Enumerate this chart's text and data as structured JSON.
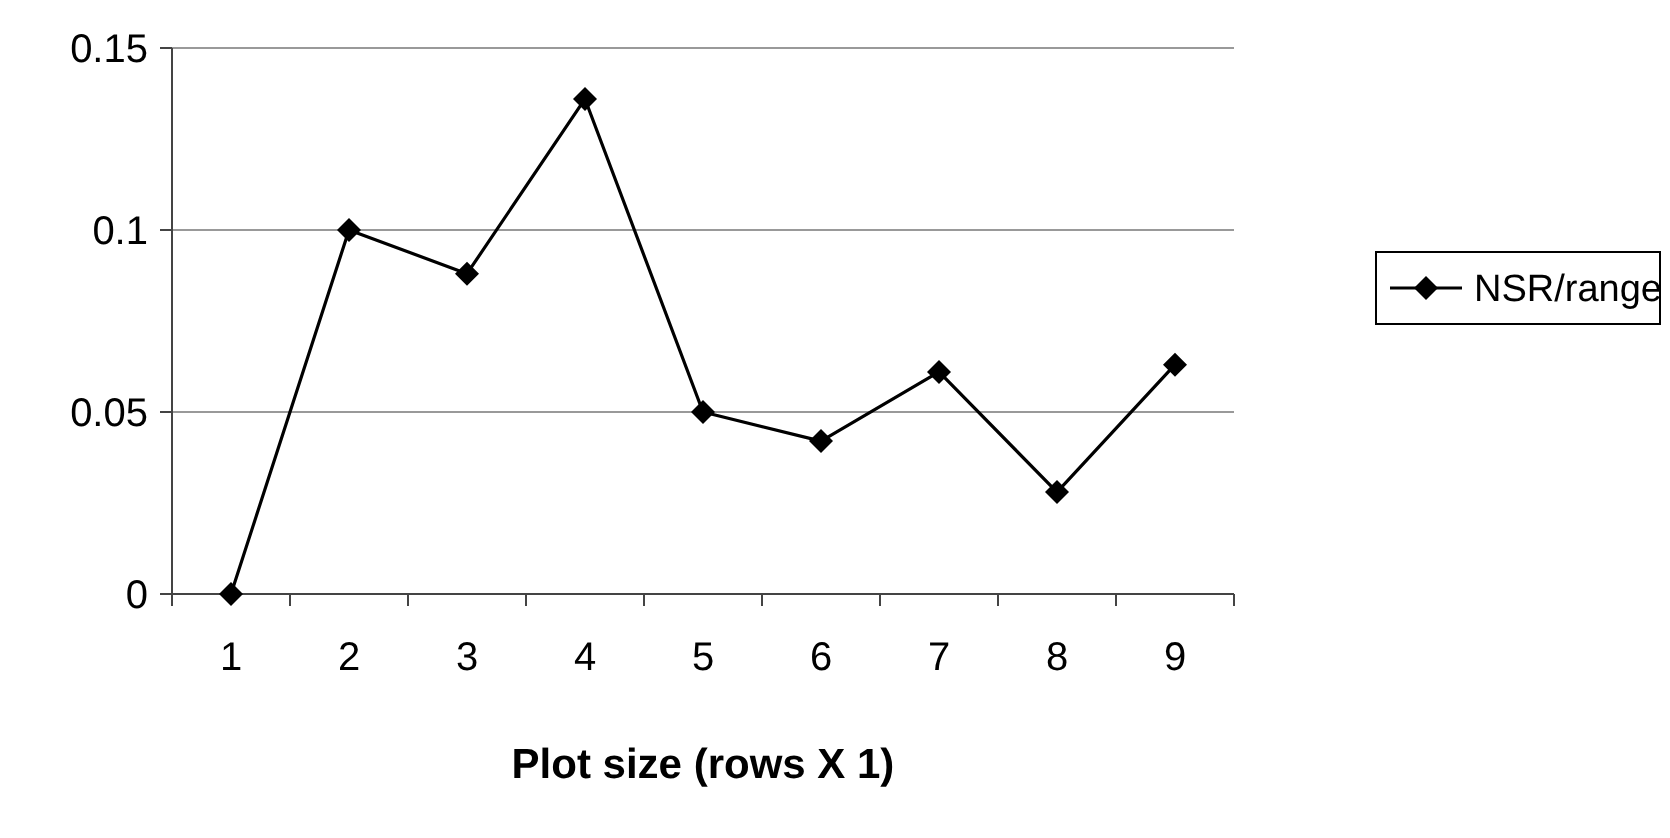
{
  "chart_data": {
    "type": "line",
    "xlabel": "Plot size (rows X 1)",
    "categories": [
      "1",
      "2",
      "3",
      "4",
      "5",
      "6",
      "7",
      "8",
      "9"
    ],
    "series": [
      {
        "name": "NSR/range",
        "color": "#000000",
        "values": [
          0,
          0.1,
          0.088,
          0.136,
          0.05,
          0.042,
          0.061,
          0.028,
          0.063
        ]
      }
    ],
    "ylim": [
      0,
      0.15
    ],
    "yticks": [
      0,
      0.05,
      0.1,
      0.15
    ],
    "grid": "y",
    "legend": "right",
    "marker": "diamond",
    "line_style": "solid"
  }
}
